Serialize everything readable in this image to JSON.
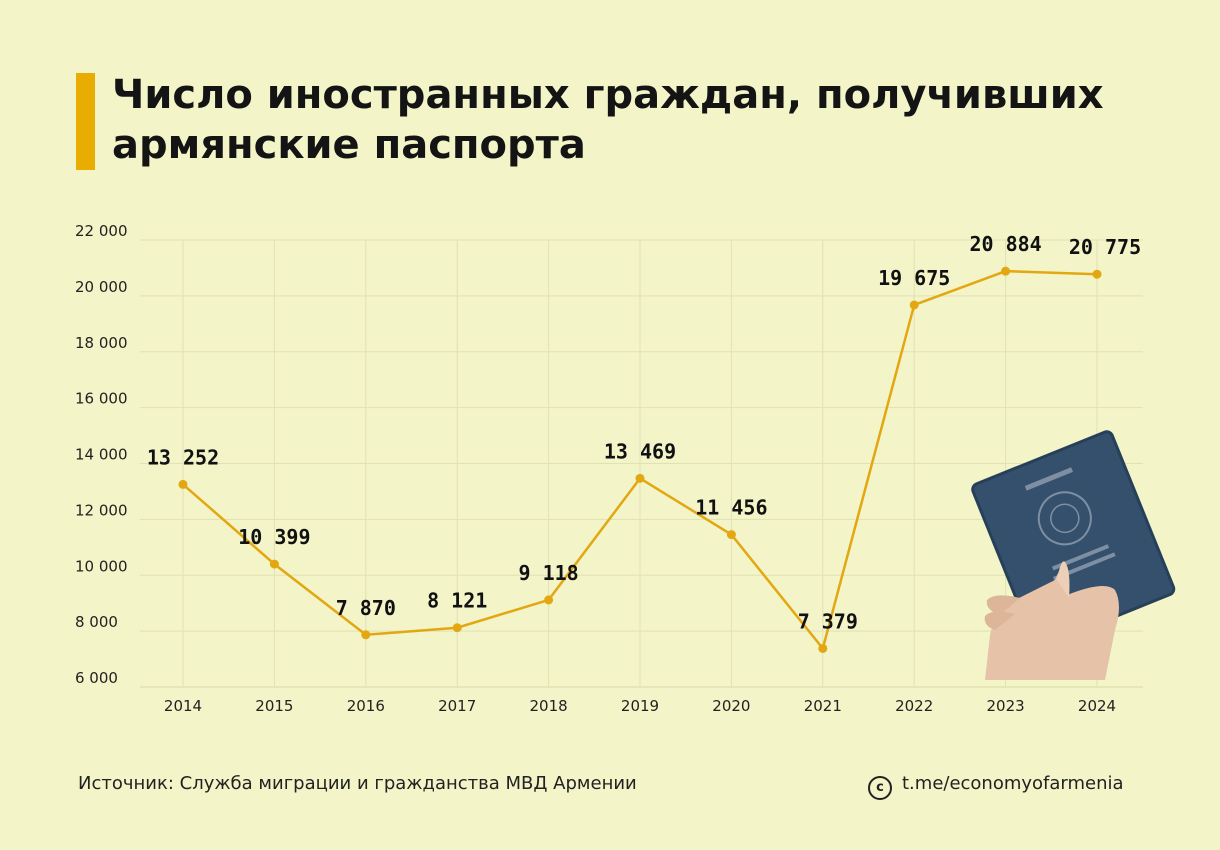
{
  "title": {
    "line1": "Число иностранных граждан, получивших",
    "line2": "армянские паспорта"
  },
  "footer": {
    "source": "Источник: Служба миграции и гражданства МВД Армении",
    "link": "t.me/economyofarmenia",
    "copyright_symbol": "c"
  },
  "colors": {
    "accent": "#e8ad00",
    "background": "#f3f4c8",
    "line": "#e3a711"
  },
  "chart_data": {
    "type": "line",
    "categories": [
      "2014",
      "2015",
      "2016",
      "2017",
      "2018",
      "2019",
      "2020",
      "2021",
      "2022",
      "2023",
      "2024"
    ],
    "values": [
      13252,
      10399,
      7870,
      8121,
      9118,
      13469,
      11456,
      7379,
      19675,
      20884,
      20775
    ],
    "value_labels": [
      "13 252",
      "10 399",
      "7 870",
      "8 121",
      "9 118",
      "13 469",
      "11 456",
      "7 379",
      "19 675",
      "20 884",
      "20 775"
    ],
    "ylim": [
      6000,
      22000
    ],
    "yticks": [
      6000,
      8000,
      10000,
      12000,
      14000,
      16000,
      18000,
      20000,
      22000
    ],
    "ytick_labels": [
      "6 000",
      "8 000",
      "10 000",
      "12 000",
      "14 000",
      "16 000",
      "18 000",
      "20 000",
      "22 000"
    ],
    "grid": true,
    "legend": "none"
  }
}
